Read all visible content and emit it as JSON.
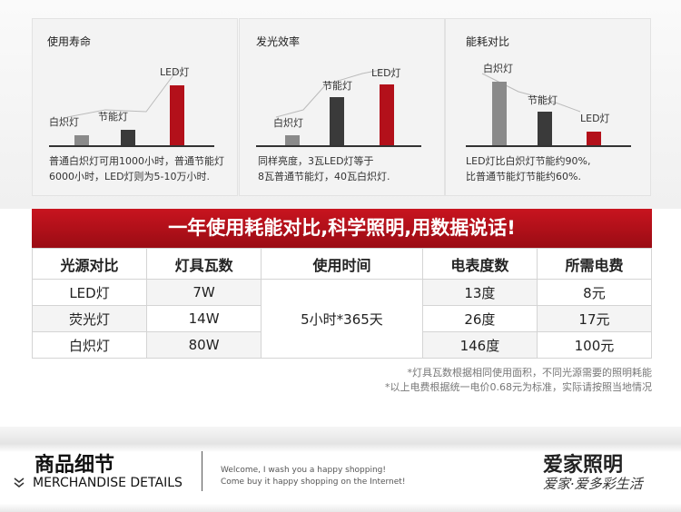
{
  "panels": [
    {
      "title": "使用寿命",
      "labels": [
        "白炽灯",
        "节能灯",
        "LED灯"
      ],
      "caption": [
        "普通白炽灯可用1000小时，普通节能灯",
        "6000小时，LED灯则为5-10万小时."
      ]
    },
    {
      "title": "发光效率",
      "labels": [
        "白炽灯",
        "节能灯",
        "LED灯"
      ],
      "caption": [
        "同样亮度，3瓦LED灯等于",
        "8瓦普通节能灯，40瓦白炽灯."
      ]
    },
    {
      "title": "能耗对比",
      "labels": [
        "白炽灯",
        "节能灯",
        "LED灯"
      ],
      "caption": [
        "LED灯比白炽灯节能约90%,",
        "比普通节能灯节能约60%."
      ]
    }
  ],
  "banner": "一年使用耗能对比,科学照明,用数据说话!",
  "table": {
    "headers": [
      "光源对比",
      "灯具瓦数",
      "使用时间",
      "电表度数",
      "所需电费"
    ],
    "usage": "5小时*365天",
    "rows": [
      [
        "LED灯",
        "7W",
        "13度",
        "8元"
      ],
      [
        "荧光灯",
        "14W",
        "26度",
        "17元"
      ],
      [
        "白炽灯",
        "80W",
        "146度",
        "100元"
      ]
    ]
  },
  "notes": [
    "*灯具瓦数根据相同使用面积，不同光源需要的照明耗能",
    "*以上电费根据统一电价0.68元为标准，实际请按照当地情况"
  ],
  "footer": {
    "title": "商品细节",
    "subtitle": "MERCHANDISE DETAILS",
    "welcome": [
      "Welcome, I wash you a happy shopping!",
      "Come buy it happy shopping on the Internet!"
    ],
    "brand": "爱家照明",
    "slogan": "爱家·爱多彩生活"
  }
}
